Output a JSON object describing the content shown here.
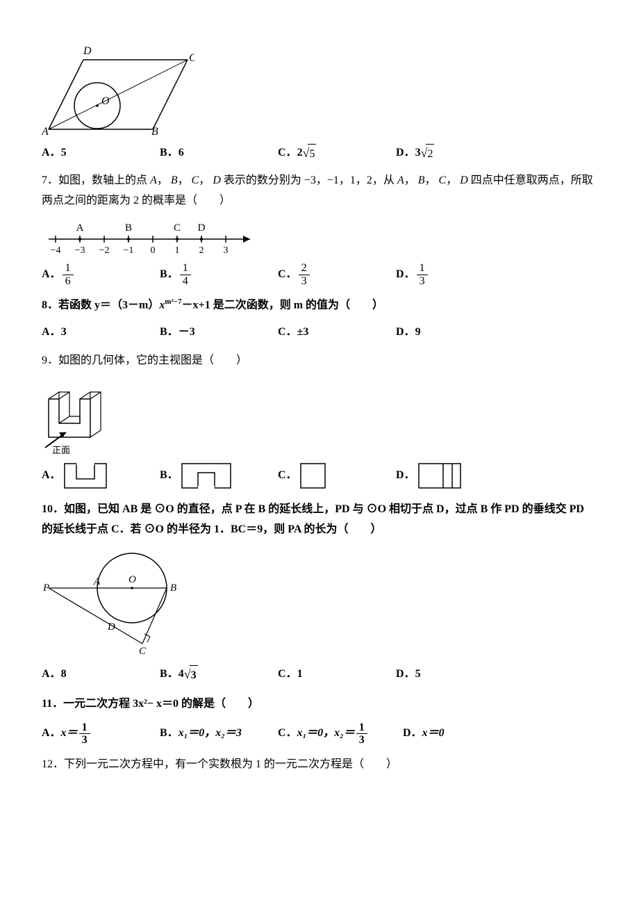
{
  "q6": {
    "parallelogram": {
      "D": "D",
      "C": "C",
      "A": "A",
      "B": "B",
      "O": "O"
    },
    "choices": {
      "A": {
        "label": "A．",
        "val": "5"
      },
      "B": {
        "label": "B．",
        "val": "6"
      },
      "C": {
        "label": "C．",
        "prefix": "2",
        "rad": "5"
      },
      "D": {
        "label": "D．",
        "prefix": "3",
        "rad": "2"
      }
    }
  },
  "q7": {
    "num": "7．",
    "text1": "如图，数轴上的点",
    "A": "A",
    "comma": "，",
    "B": "B",
    "C": "C",
    "D": "D",
    "text2": "表示的数分别为 −3，−1，1，2，从",
    "text3": "四点中任意取两点，所取两点之间的距离为 2 的概率是（　　）",
    "numberline": {
      "labels_top": [
        "A",
        "B",
        "C",
        "D"
      ],
      "labels_bottom": [
        "−4",
        "−3",
        "−2",
        "−1",
        "0",
        "1",
        "2",
        "3"
      ]
    },
    "choices": {
      "A": {
        "label": "A．",
        "num": "1",
        "den": "6"
      },
      "B": {
        "label": "B．",
        "num": "1",
        "den": "4"
      },
      "C": {
        "label": "C．",
        "num": "2",
        "den": "3"
      },
      "D": {
        "label": "D．",
        "num": "1",
        "den": "3"
      }
    }
  },
  "q8": {
    "num": "8．",
    "text1": "若函数 y＝（3－m）",
    "exp_base": "x",
    "exp_sup": "m²−7",
    "text2": "－x+1 是二次函数，则 m 的值为（　　）",
    "choices": {
      "A": {
        "label": "A．",
        "val": "3"
      },
      "B": {
        "label": "B．",
        "val": "－3"
      },
      "C": {
        "label": "C．",
        "val": "±3"
      },
      "D": {
        "label": "D．",
        "val": "9"
      }
    }
  },
  "q9": {
    "num": "9．",
    "text": "如图的几何体，它的主视图是（　　）",
    "front_label": "正面",
    "choices": {
      "A": {
        "label": "A．"
      },
      "B": {
        "label": "B．"
      },
      "C": {
        "label": "C．"
      },
      "D": {
        "label": "D．"
      }
    }
  },
  "q10": {
    "num": "10．",
    "text1": "如图，已知 AB 是 ⊙O 的直径，点 P 在 B 的延长线上，PD 与 ⊙O 相切于点 D，过点 B 作 PD 的垂线交 PD 的延长线于点 C．若 ⊙O 的半径为 1．BC＝9，则 PA 的长为（　　）",
    "circle_labels": {
      "P": "P",
      "A": "A",
      "O": "O",
      "B": "B",
      "D": "D",
      "C": "C"
    },
    "choices": {
      "A": {
        "label": "A．",
        "val": "8"
      },
      "B": {
        "label": "B．",
        "prefix": "4",
        "rad": "3"
      },
      "C": {
        "label": "C．",
        "val": "1"
      },
      "D": {
        "label": "D．",
        "val": "5"
      }
    }
  },
  "q11": {
    "num": "11．",
    "text": "一元二次方程 3x²− x＝0 的解是（　　）",
    "choices": {
      "A": {
        "label": "A．",
        "pre": "x＝",
        "num": "1",
        "den": "3"
      },
      "B": {
        "label": "B．",
        "val": "x₁＝0，x₂＝3"
      },
      "C": {
        "label": "C．",
        "pre": "x₁＝0，x₂＝",
        "num": "1",
        "den": "3"
      },
      "D": {
        "label": "D．",
        "val": "x＝0"
      }
    }
  },
  "q12": {
    "num": "12．",
    "text": "下列一元二次方程中，有一个实数根为 1 的一元二次方程是（　　）"
  },
  "layout": {
    "choice_cols": [
      0,
      170,
      340,
      510
    ]
  },
  "colors": {
    "ink": "#000000",
    "bg": "#ffffff"
  }
}
